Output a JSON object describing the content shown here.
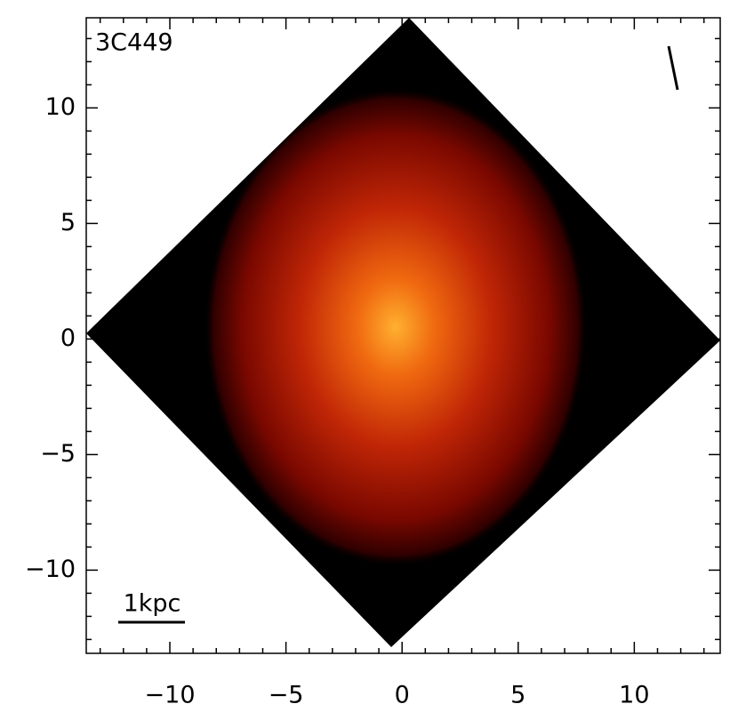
{
  "chart_data": {
    "type": "image",
    "title": "3C449",
    "scale_label": "1kpc",
    "xlim": [
      -13.6,
      13.7
    ],
    "ylim": [
      -13.6,
      13.9
    ],
    "xticks": [
      {
        "value": -10,
        "label": "−10"
      },
      {
        "value": -5,
        "label": "−5"
      },
      0,
      5,
      10
    ],
    "yticks": [
      {
        "value": -10,
        "label": "−10"
      },
      {
        "value": -5,
        "label": "−5"
      },
      0,
      5,
      10
    ],
    "xminorticks": [
      -13,
      -12,
      -11,
      -9,
      -8,
      -7,
      -6,
      -4,
      -3,
      -2,
      -1,
      1,
      2,
      3,
      4,
      6,
      7,
      8,
      9,
      11,
      12,
      13
    ],
    "yminorticks": [
      -13,
      -12,
      -11,
      -9,
      -8,
      -7,
      -6,
      -4,
      -3,
      -2,
      -1,
      1,
      2,
      3,
      4,
      6,
      7,
      8,
      9,
      11,
      12,
      13
    ]
  }
}
